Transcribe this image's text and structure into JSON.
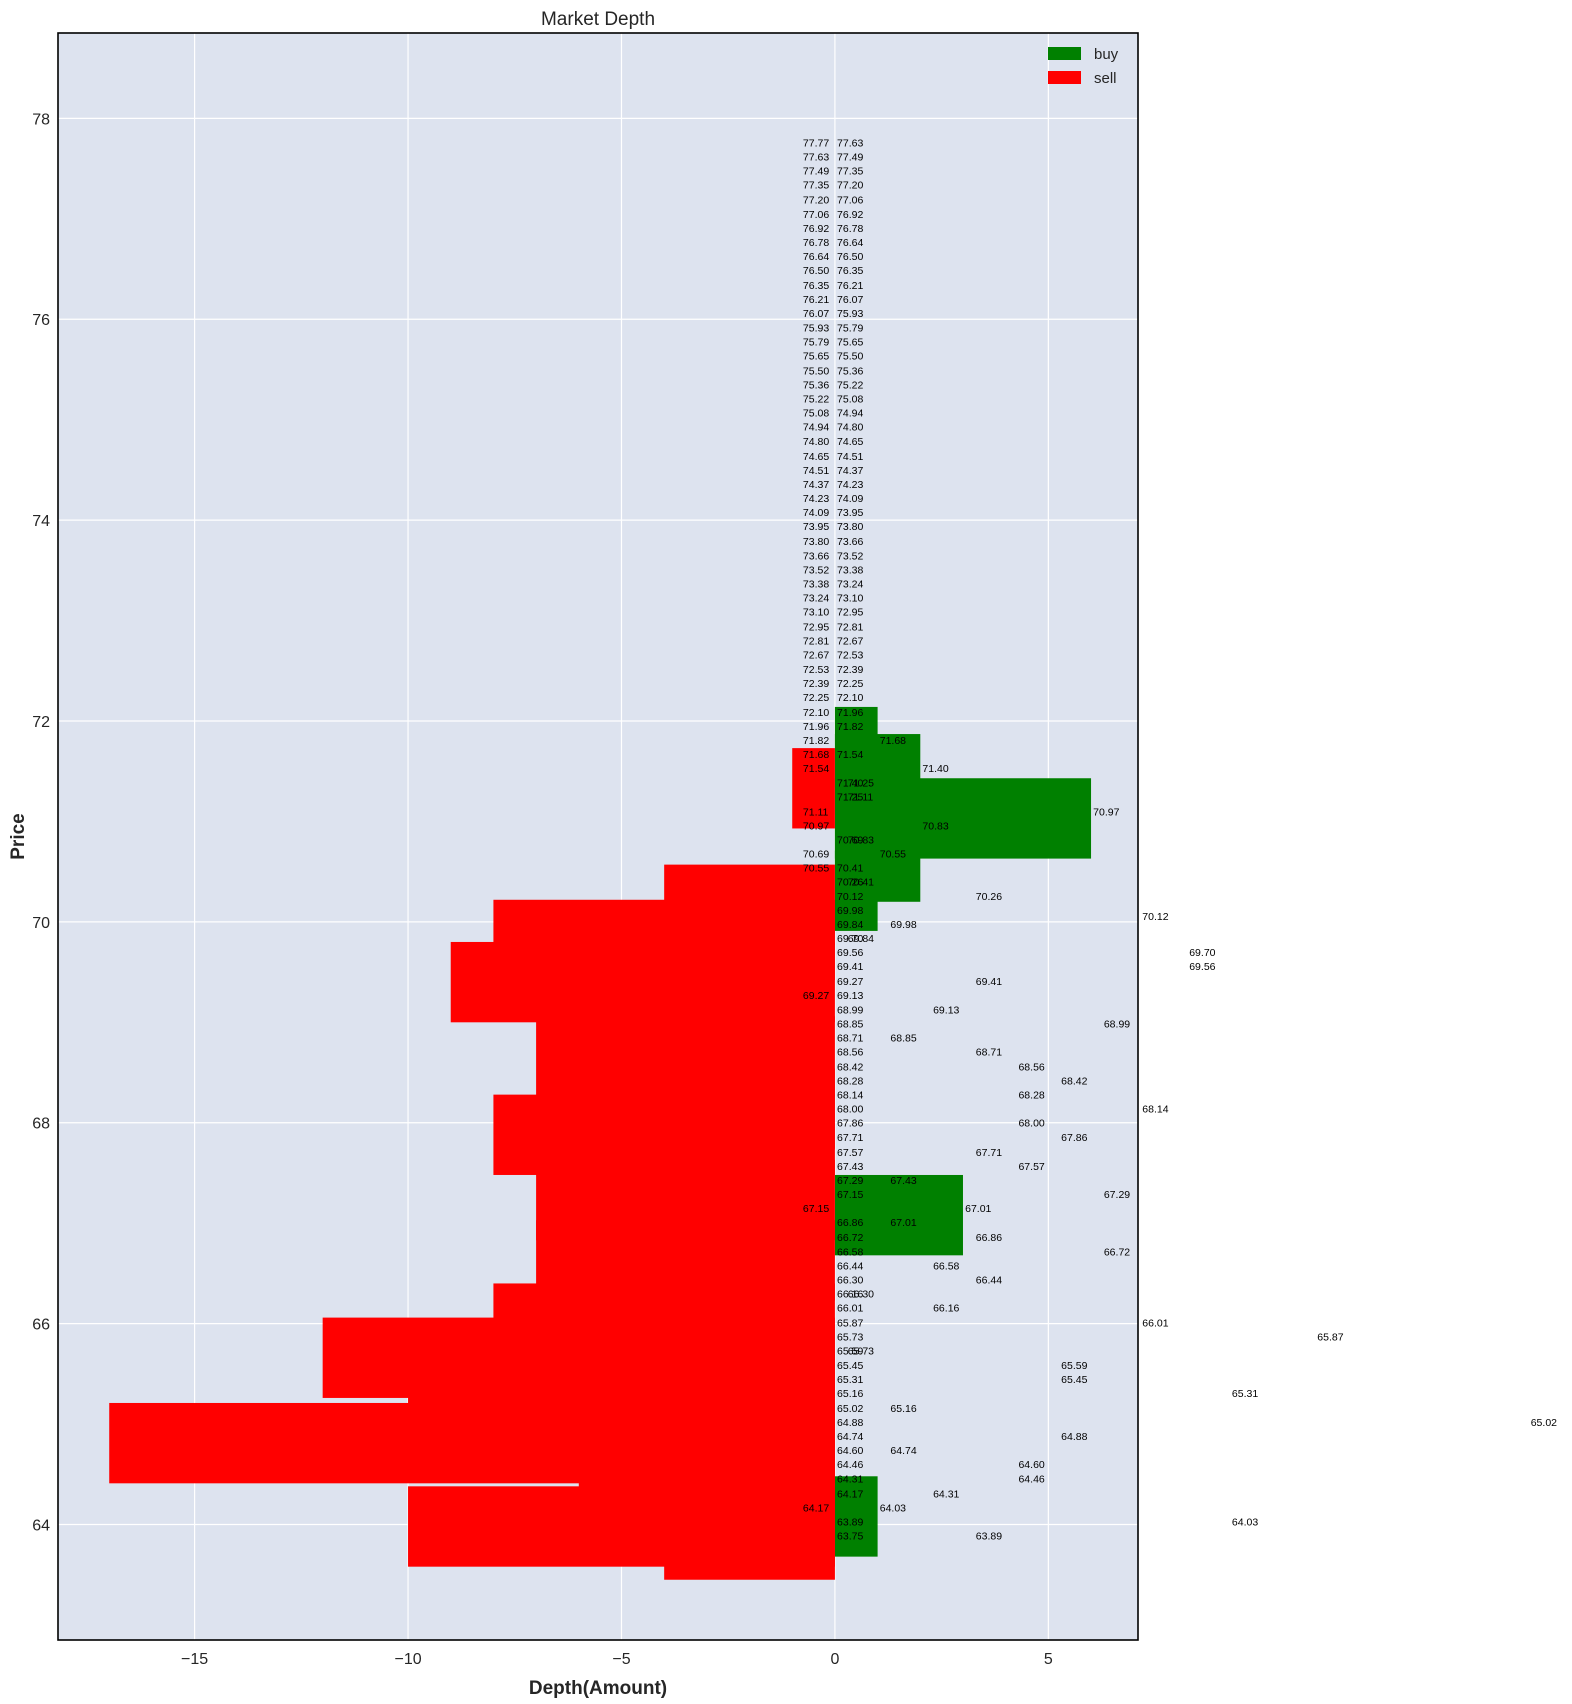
{
  "chart_data": {
    "type": "bar",
    "orientation": "horizontal",
    "title": "Market Depth",
    "xlabel": "Depth(Amount)",
    "ylabel": "Price",
    "xlim": [
      -18.2,
      7.1
    ],
    "ylim": [
      62.85,
      78.85
    ],
    "xticks": [
      -15,
      -10,
      -5,
      0,
      5
    ],
    "xtick_labels": [
      "−15",
      "−10",
      "−5",
      "0",
      "5"
    ],
    "yticks": [
      64,
      66,
      68,
      70,
      72,
      74,
      76,
      78
    ],
    "grid": true,
    "legend_position": "top-right",
    "colors": {
      "plot_bg": "#dde3ef",
      "grid": "#ffffff",
      "buy": "#008000",
      "sell": "#ff0000"
    },
    "series": [
      {
        "name": "buy",
        "color": "#008000",
        "bars": [
          {
            "price": 71.74,
            "height": 0.8,
            "value": 1
          },
          {
            "price": 71.47,
            "height": 0.8,
            "value": 2
          },
          {
            "price": 71.03,
            "height": 0.8,
            "value": 6
          },
          {
            "price": 70.6,
            "height": 0.8,
            "value": 2
          },
          {
            "price": 70.31,
            "height": 0.8,
            "value": 1
          },
          {
            "price": 67.08,
            "height": 0.8,
            "value": 3
          },
          {
            "price": 64.08,
            "height": 0.8,
            "value": 1
          }
        ]
      },
      {
        "name": "sell",
        "color": "#ff0000",
        "bars": [
          {
            "price": 71.33,
            "height": 0.8,
            "value": -1
          },
          {
            "price": 70.17,
            "height": 0.8,
            "value": -4
          },
          {
            "price": 69.82,
            "height": 0.8,
            "value": -8
          },
          {
            "price": 69.4,
            "height": 0.8,
            "value": -9
          },
          {
            "price": 68.66,
            "height": 0.8,
            "value": -7
          },
          {
            "price": 68.14,
            "height": 0.8,
            "value": -6
          },
          {
            "price": 67.88,
            "height": 0.8,
            "value": -8
          },
          {
            "price": 67.23,
            "height": 0.8,
            "value": -7
          },
          {
            "price": 66.63,
            "height": 0.8,
            "value": -7
          },
          {
            "price": 66.0,
            "height": 0.8,
            "value": -8
          },
          {
            "price": 65.66,
            "height": 0.8,
            "value": -12
          },
          {
            "price": 65.35,
            "height": 0.8,
            "value": -10
          },
          {
            "price": 65.28,
            "height": 0.8,
            "value": -5
          },
          {
            "price": 64.81,
            "height": 0.8,
            "value": -17
          },
          {
            "price": 64.64,
            "height": 0.8,
            "value": -6
          },
          {
            "price": 64.45,
            "height": 0.8,
            "value": -5
          },
          {
            "price": 63.98,
            "height": 0.8,
            "value": -10
          },
          {
            "price": 63.85,
            "height": 0.8,
            "value": -4
          }
        ]
      }
    ],
    "annotations": [
      {
        "text": "77.77",
        "x": -0.75,
        "y": 77.76
      },
      {
        "text": "77.63",
        "x": 0.05,
        "y": 77.76
      },
      {
        "text": "77.63",
        "x": -0.75,
        "y": 77.62
      },
      {
        "text": "77.49",
        "x": 0.05,
        "y": 77.62
      },
      {
        "text": "77.49",
        "x": -0.75,
        "y": 77.48
      },
      {
        "text": "77.35",
        "x": 0.05,
        "y": 77.48
      },
      {
        "text": "77.35",
        "x": -0.75,
        "y": 77.34
      },
      {
        "text": "77.20",
        "x": 0.05,
        "y": 77.34
      },
      {
        "text": "77.20",
        "x": -0.75,
        "y": 77.19
      },
      {
        "text": "77.06",
        "x": 0.05,
        "y": 77.19
      },
      {
        "text": "77.06",
        "x": -0.75,
        "y": 77.05
      },
      {
        "text": "76.92",
        "x": 0.05,
        "y": 77.05
      },
      {
        "text": "76.92",
        "x": -0.75,
        "y": 76.91
      },
      {
        "text": "76.78",
        "x": 0.05,
        "y": 76.91
      },
      {
        "text": "76.78",
        "x": -0.75,
        "y": 76.77
      },
      {
        "text": "76.64",
        "x": 0.05,
        "y": 76.77
      },
      {
        "text": "76.64",
        "x": -0.75,
        "y": 76.63
      },
      {
        "text": "76.50",
        "x": 0.05,
        "y": 76.63
      },
      {
        "text": "76.50",
        "x": -0.75,
        "y": 76.49
      },
      {
        "text": "76.35",
        "x": 0.05,
        "y": 76.49
      },
      {
        "text": "76.35",
        "x": -0.75,
        "y": 76.34
      },
      {
        "text": "76.21",
        "x": 0.05,
        "y": 76.34
      },
      {
        "text": "76.21",
        "x": -0.75,
        "y": 76.2
      },
      {
        "text": "76.07",
        "x": 0.05,
        "y": 76.2
      },
      {
        "text": "76.07",
        "x": -0.75,
        "y": 76.06
      },
      {
        "text": "75.93",
        "x": 0.05,
        "y": 76.06
      },
      {
        "text": "75.93",
        "x": -0.75,
        "y": 75.92
      },
      {
        "text": "75.79",
        "x": 0.05,
        "y": 75.92
      },
      {
        "text": "75.79",
        "x": -0.75,
        "y": 75.78
      },
      {
        "text": "75.65",
        "x": 0.05,
        "y": 75.78
      },
      {
        "text": "75.65",
        "x": -0.75,
        "y": 75.64
      },
      {
        "text": "75.50",
        "x": 0.05,
        "y": 75.64
      },
      {
        "text": "75.50",
        "x": -0.75,
        "y": 75.49
      },
      {
        "text": "75.36",
        "x": 0.05,
        "y": 75.49
      },
      {
        "text": "75.36",
        "x": -0.75,
        "y": 75.35
      },
      {
        "text": "75.22",
        "x": 0.05,
        "y": 75.35
      },
      {
        "text": "75.22",
        "x": -0.75,
        "y": 75.21
      },
      {
        "text": "75.08",
        "x": 0.05,
        "y": 75.21
      },
      {
        "text": "75.08",
        "x": -0.75,
        "y": 75.07
      },
      {
        "text": "74.94",
        "x": 0.05,
        "y": 75.07
      },
      {
        "text": "74.94",
        "x": -0.75,
        "y": 74.93
      },
      {
        "text": "74.80",
        "x": 0.05,
        "y": 74.93
      },
      {
        "text": "74.80",
        "x": -0.75,
        "y": 74.79
      },
      {
        "text": "74.65",
        "x": 0.05,
        "y": 74.79
      },
      {
        "text": "74.65",
        "x": -0.75,
        "y": 74.64
      },
      {
        "text": "74.51",
        "x": 0.05,
        "y": 74.64
      },
      {
        "text": "74.51",
        "x": -0.75,
        "y": 74.5
      },
      {
        "text": "74.37",
        "x": 0.05,
        "y": 74.5
      },
      {
        "text": "74.37",
        "x": -0.75,
        "y": 74.36
      },
      {
        "text": "74.23",
        "x": 0.05,
        "y": 74.36
      },
      {
        "text": "74.23",
        "x": -0.75,
        "y": 74.22
      },
      {
        "text": "74.09",
        "x": 0.05,
        "y": 74.22
      },
      {
        "text": "74.09",
        "x": -0.75,
        "y": 74.08
      },
      {
        "text": "73.95",
        "x": 0.05,
        "y": 74.08
      },
      {
        "text": "73.95",
        "x": -0.75,
        "y": 73.94
      },
      {
        "text": "73.80",
        "x": 0.05,
        "y": 73.94
      },
      {
        "text": "73.80",
        "x": -0.75,
        "y": 73.79
      },
      {
        "text": "73.66",
        "x": 0.05,
        "y": 73.79
      },
      {
        "text": "73.66",
        "x": -0.75,
        "y": 73.65
      },
      {
        "text": "73.52",
        "x": 0.05,
        "y": 73.65
      },
      {
        "text": "73.52",
        "x": -0.75,
        "y": 73.51
      },
      {
        "text": "73.38",
        "x": 0.05,
        "y": 73.51
      },
      {
        "text": "73.38",
        "x": -0.75,
        "y": 73.37
      },
      {
        "text": "73.24",
        "x": 0.05,
        "y": 73.37
      },
      {
        "text": "73.24",
        "x": -0.75,
        "y": 73.23
      },
      {
        "text": "73.10",
        "x": 0.05,
        "y": 73.23
      },
      {
        "text": "73.10",
        "x": -0.75,
        "y": 73.09
      },
      {
        "text": "72.95",
        "x": 0.05,
        "y": 73.09
      },
      {
        "text": "72.95",
        "x": -0.75,
        "y": 72.94
      },
      {
        "text": "72.81",
        "x": 0.05,
        "y": 72.94
      },
      {
        "text": "72.81",
        "x": -0.75,
        "y": 72.8
      },
      {
        "text": "72.67",
        "x": 0.05,
        "y": 72.8
      },
      {
        "text": "72.67",
        "x": -0.75,
        "y": 72.66
      },
      {
        "text": "72.53",
        "x": 0.05,
        "y": 72.66
      },
      {
        "text": "72.53",
        "x": -0.75,
        "y": 72.52
      },
      {
        "text": "72.39",
        "x": 0.05,
        "y": 72.52
      },
      {
        "text": "72.39",
        "x": -0.75,
        "y": 72.38
      },
      {
        "text": "72.25",
        "x": 0.05,
        "y": 72.38
      },
      {
        "text": "72.25",
        "x": -0.75,
        "y": 72.24
      },
      {
        "text": "72.10",
        "x": 0.05,
        "y": 72.24
      },
      {
        "text": "72.10",
        "x": -0.75,
        "y": 72.09
      },
      {
        "text": "71.96",
        "x": 0.05,
        "y": 72.09
      },
      {
        "text": "71.96",
        "x": -0.75,
        "y": 71.95
      },
      {
        "text": "71.82",
        "x": 0.05,
        "y": 71.95
      },
      {
        "text": "71.82",
        "x": -0.75,
        "y": 71.81
      },
      {
        "text": "71.68",
        "x": 1.05,
        "y": 71.81
      },
      {
        "text": "71.68",
        "x": -0.75,
        "y": 71.67
      },
      {
        "text": "71.54",
        "x": 0.05,
        "y": 71.67
      },
      {
        "text": "71.54",
        "x": -0.75,
        "y": 71.53
      },
      {
        "text": "71.40",
        "x": 2.05,
        "y": 71.53
      },
      {
        "text": "71.40",
        "x": 0.05,
        "y": 71.39
      },
      {
        "text": "71.25",
        "x": 0.3,
        "y": 71.39
      },
      {
        "text": "71.25",
        "x": 0.05,
        "y": 71.25
      },
      {
        "text": "71.11",
        "x": 0.3,
        "y": 71.25
      },
      {
        "text": "71.11",
        "x": -0.75,
        "y": 71.1
      },
      {
        "text": "70.97",
        "x": 6.05,
        "y": 71.1
      },
      {
        "text": "70.97",
        "x": -0.75,
        "y": 70.96
      },
      {
        "text": "70.83",
        "x": 2.05,
        "y": 70.96
      },
      {
        "text": "70.69",
        "x": 0.05,
        "y": 70.82
      },
      {
        "text": "70.83",
        "x": 0.3,
        "y": 70.82
      },
      {
        "text": "70.69",
        "x": -0.75,
        "y": 70.68
      },
      {
        "text": "70.55",
        "x": 1.05,
        "y": 70.68
      },
      {
        "text": "70.55",
        "x": -0.75,
        "y": 70.54
      },
      {
        "text": "70.41",
        "x": 0.05,
        "y": 70.54
      },
      {
        "text": "70.26",
        "x": 0.05,
        "y": 70.4
      },
      {
        "text": "70.41",
        "x": 0.3,
        "y": 70.4
      },
      {
        "text": "70.12",
        "x": 0.05,
        "y": 70.26
      },
      {
        "text": "70.26",
        "x": 3.3,
        "y": 70.26
      },
      {
        "text": "69.98",
        "x": 0.05,
        "y": 70.12
      },
      {
        "text": "70.12",
        "x": 7.2,
        "y": 70.06
      },
      {
        "text": "69.84",
        "x": 0.05,
        "y": 69.98
      },
      {
        "text": "69.98",
        "x": 1.3,
        "y": 69.98
      },
      {
        "text": "69.70",
        "x": 0.05,
        "y": 69.84
      },
      {
        "text": "69.84",
        "x": 0.3,
        "y": 69.84
      },
      {
        "text": "69.56",
        "x": 0.05,
        "y": 69.7
      },
      {
        "text": "69.70",
        "x": 8.3,
        "y": 69.7
      },
      {
        "text": "69.41",
        "x": 0.05,
        "y": 69.56
      },
      {
        "text": "69.56",
        "x": 8.3,
        "y": 69.56
      },
      {
        "text": "69.27",
        "x": 0.05,
        "y": 69.41
      },
      {
        "text": "69.41",
        "x": 3.3,
        "y": 69.41
      },
      {
        "text": "69.27",
        "x": -0.75,
        "y": 69.27
      },
      {
        "text": "69.13",
        "x": 0.05,
        "y": 69.27
      },
      {
        "text": "68.99",
        "x": 0.05,
        "y": 69.13
      },
      {
        "text": "69.13",
        "x": 2.3,
        "y": 69.13
      },
      {
        "text": "68.85",
        "x": 0.05,
        "y": 68.99
      },
      {
        "text": "68.99",
        "x": 6.3,
        "y": 68.99
      },
      {
        "text": "68.71",
        "x": 0.05,
        "y": 68.85
      },
      {
        "text": "68.85",
        "x": 1.3,
        "y": 68.85
      },
      {
        "text": "68.56",
        "x": 0.05,
        "y": 68.71
      },
      {
        "text": "68.71",
        "x": 3.3,
        "y": 68.71
      },
      {
        "text": "68.42",
        "x": 0.05,
        "y": 68.56
      },
      {
        "text": "68.56",
        "x": 4.3,
        "y": 68.56
      },
      {
        "text": "68.28",
        "x": 0.05,
        "y": 68.42
      },
      {
        "text": "68.42",
        "x": 5.3,
        "y": 68.42
      },
      {
        "text": "68.14",
        "x": 0.05,
        "y": 68.28
      },
      {
        "text": "68.28",
        "x": 4.3,
        "y": 68.28
      },
      {
        "text": "68.00",
        "x": 0.05,
        "y": 68.14
      },
      {
        "text": "68.14",
        "x": 7.2,
        "y": 68.14
      },
      {
        "text": "67.86",
        "x": 0.05,
        "y": 68.0
      },
      {
        "text": "68.00",
        "x": 4.3,
        "y": 68.0
      },
      {
        "text": "67.71",
        "x": 0.05,
        "y": 67.86
      },
      {
        "text": "67.86",
        "x": 5.3,
        "y": 67.86
      },
      {
        "text": "67.57",
        "x": 0.05,
        "y": 67.71
      },
      {
        "text": "67.71",
        "x": 3.3,
        "y": 67.71
      },
      {
        "text": "67.43",
        "x": 0.05,
        "y": 67.57
      },
      {
        "text": "67.57",
        "x": 4.3,
        "y": 67.57
      },
      {
        "text": "67.29",
        "x": 0.05,
        "y": 67.43
      },
      {
        "text": "67.43",
        "x": 1.3,
        "y": 67.43
      },
      {
        "text": "67.15",
        "x": 0.05,
        "y": 67.29
      },
      {
        "text": "67.29",
        "x": 6.3,
        "y": 67.29
      },
      {
        "text": "67.15",
        "x": -0.75,
        "y": 67.15
      },
      {
        "text": "67.01",
        "x": 3.05,
        "y": 67.15
      },
      {
        "text": "66.86",
        "x": 0.05,
        "y": 67.01
      },
      {
        "text": "67.01",
        "x": 1.3,
        "y": 67.01
      },
      {
        "text": "66.72",
        "x": 0.05,
        "y": 66.86
      },
      {
        "text": "66.86",
        "x": 3.3,
        "y": 66.86
      },
      {
        "text": "66.58",
        "x": 0.05,
        "y": 66.72
      },
      {
        "text": "66.72",
        "x": 6.3,
        "y": 66.72
      },
      {
        "text": "66.44",
        "x": 0.05,
        "y": 66.58
      },
      {
        "text": "66.58",
        "x": 2.3,
        "y": 66.58
      },
      {
        "text": "66.30",
        "x": 0.05,
        "y": 66.44
      },
      {
        "text": "66.44",
        "x": 3.3,
        "y": 66.44
      },
      {
        "text": "66.16",
        "x": 0.05,
        "y": 66.3
      },
      {
        "text": "66.30",
        "x": 0.3,
        "y": 66.3
      },
      {
        "text": "66.01",
        "x": 0.05,
        "y": 66.16
      },
      {
        "text": "66.16",
        "x": 2.3,
        "y": 66.16
      },
      {
        "text": "65.87",
        "x": 0.05,
        "y": 66.01
      },
      {
        "text": "66.01",
        "x": 7.2,
        "y": 66.01
      },
      {
        "text": "65.73",
        "x": 0.05,
        "y": 65.87
      },
      {
        "text": "65.87",
        "x": 11.3,
        "y": 65.87
      },
      {
        "text": "65.59",
        "x": 0.05,
        "y": 65.73
      },
      {
        "text": "65.73",
        "x": 0.3,
        "y": 65.73
      },
      {
        "text": "65.45",
        "x": 0.05,
        "y": 65.59
      },
      {
        "text": "65.59",
        "x": 5.3,
        "y": 65.59
      },
      {
        "text": "65.31",
        "x": 0.05,
        "y": 65.45
      },
      {
        "text": "65.45",
        "x": 5.3,
        "y": 65.45
      },
      {
        "text": "65.16",
        "x": 0.05,
        "y": 65.31
      },
      {
        "text": "65.31",
        "x": 9.3,
        "y": 65.31
      },
      {
        "text": "65.02",
        "x": 0.05,
        "y": 65.16
      },
      {
        "text": "65.16",
        "x": 1.3,
        "y": 65.16
      },
      {
        "text": "64.88",
        "x": 0.05,
        "y": 65.02
      },
      {
        "text": "65.02",
        "x": 16.3,
        "y": 65.02
      },
      {
        "text": "64.74",
        "x": 0.05,
        "y": 64.88
      },
      {
        "text": "64.88",
        "x": 5.3,
        "y": 64.88
      },
      {
        "text": "64.60",
        "x": 0.05,
        "y": 64.74
      },
      {
        "text": "64.74",
        "x": 1.3,
        "y": 64.74
      },
      {
        "text": "64.46",
        "x": 0.05,
        "y": 64.6
      },
      {
        "text": "64.60",
        "x": 4.3,
        "y": 64.6
      },
      {
        "text": "64.31",
        "x": 0.05,
        "y": 64.46
      },
      {
        "text": "64.46",
        "x": 4.3,
        "y": 64.46
      },
      {
        "text": "64.17",
        "x": 0.05,
        "y": 64.31
      },
      {
        "text": "64.31",
        "x": 2.3,
        "y": 64.31
      },
      {
        "text": "64.17",
        "x": -0.75,
        "y": 64.17
      },
      {
        "text": "64.03",
        "x": 1.05,
        "y": 64.17
      },
      {
        "text": "63.89",
        "x": 0.05,
        "y": 64.03
      },
      {
        "text": "64.03",
        "x": 9.3,
        "y": 64.03
      },
      {
        "text": "63.75",
        "x": 0.05,
        "y": 63.89
      },
      {
        "text": "63.89",
        "x": 3.3,
        "y": 63.89
      }
    ]
  }
}
